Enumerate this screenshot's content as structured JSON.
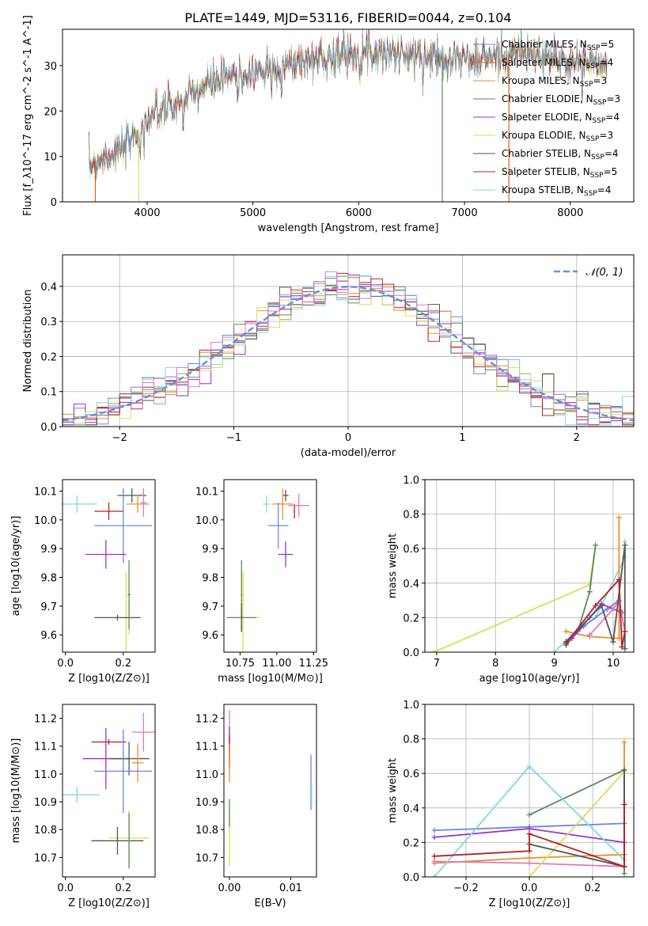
{
  "chart_data": [
    {
      "id": "spectrum",
      "type": "line",
      "title": "PLATE=1449, MJD=53116, FIBERID=0044, z=0.104",
      "xlabel": "wavelength [Angstrom, rest frame]",
      "ylabel": "Flux [f_λ10^-17 erg cm^-2 s^-1 A^-1]",
      "xlim": [
        3200,
        8600
      ],
      "ylim": [
        0,
        38
      ],
      "xticks": [
        4000,
        5000,
        6000,
        7000,
        8000
      ],
      "yticks": [
        0,
        10,
        20,
        30
      ],
      "observed_flux": {
        "x": [
          3450,
          3600,
          3800,
          3900,
          4000,
          4100,
          4300,
          4500,
          4700,
          4900,
          5100,
          5300,
          5500,
          5700,
          5900,
          6100,
          6300,
          6500,
          6700,
          6900,
          7100,
          7300,
          7500,
          7700,
          7900,
          8100,
          8300
        ],
        "y": [
          8,
          10,
          12,
          15,
          18,
          20,
          21,
          25,
          27,
          28,
          29,
          30,
          31,
          32,
          33,
          33,
          33,
          32,
          32,
          32,
          31,
          32,
          33,
          32,
          31,
          31,
          30
        ]
      },
      "model_dropouts": [
        3510,
        3920,
        6790,
        7420
      ],
      "legend": {
        "placement": "upper right",
        "entries": [
          {
            "label": "Chabrier MILES, N_SSP=5",
            "color": "#6688dd"
          },
          {
            "label": "Salpeter MILES, N_SSP=4",
            "color": "#e06010"
          },
          {
            "label": "Kroupa MILES, N_SSP=3",
            "color": "#e8902a"
          },
          {
            "label": "Chabrier ELODIE, N_SSP=3",
            "color": "#5a8a5a"
          },
          {
            "label": "Salpeter ELODIE, N_SSP=4",
            "color": "#9932cc"
          },
          {
            "label": "Kroupa ELODIE, N_SSP=3",
            "color": "#d4e157"
          },
          {
            "label": "Chabrier STELIB, N_SSP=4",
            "color": "#555555"
          },
          {
            "label": "Salpeter STELIB, N_SSP=5",
            "color": "#b22222"
          },
          {
            "label": "Kroupa STELIB, N_SSP=4",
            "color": "#80d8e0"
          }
        ]
      }
    },
    {
      "id": "residuals",
      "type": "line",
      "xlabel": "(data-model)/error",
      "ylabel": "Normed distribution",
      "xlim": [
        -2.5,
        2.5
      ],
      "ylim": [
        0,
        0.49
      ],
      "xticks": [
        -2,
        -1,
        0,
        1,
        2
      ],
      "yticks": [
        0,
        0.1,
        0.2,
        0.3,
        0.4
      ],
      "ytick_labels": [
        "0.0",
        "0.1",
        "0.2",
        "0.3",
        "0.4"
      ],
      "grid": true,
      "normal_curve": {
        "label": "𝒩(0, 1)",
        "mean": 0,
        "sigma": 1,
        "color": "#6a8fd8"
      },
      "histogram_bins": 50,
      "histogram_colors": [
        "#6688dd",
        "#e8902a",
        "#5a8a5a",
        "#9932cc",
        "#d4e157",
        "#555555",
        "#b22222",
        "#80d8e0",
        "#e377c2"
      ]
    },
    {
      "id": "age_vs_Z",
      "type": "scatter",
      "xlabel": "Z [log10(Z/Z⊙)]",
      "ylabel": "age  [log10(age/yr)]",
      "xlim": [
        -0.01,
        0.31
      ],
      "ylim": [
        9.54,
        10.14
      ],
      "xticks": [
        0.0,
        0.2
      ],
      "xtick_labels": [
        "0.0",
        "0.2"
      ],
      "yticks": [
        9.6,
        9.7,
        9.8,
        9.9,
        10.0,
        10.1
      ],
      "ytick_labels": [
        "9.6",
        "9.7",
        "9.8",
        "9.9",
        "10.0",
        "10.1"
      ],
      "points": [
        {
          "x": 0.04,
          "y": 10.055,
          "xerr": 0.07,
          "yerr": 0.03,
          "color": "#80d8e0"
        },
        {
          "x": 0.15,
          "y": 10.03,
          "xerr": 0.05,
          "yerr": 0.03,
          "color": "#b22222"
        },
        {
          "x": 0.23,
          "y": 10.085,
          "xerr": 0.05,
          "yerr": 0.025,
          "color": "#555555"
        },
        {
          "x": 0.25,
          "y": 10.055,
          "xerr": 0.04,
          "yerr": 0.03,
          "color": "#e8902a"
        },
        {
          "x": 0.27,
          "y": 10.06,
          "xerr": 0.01,
          "yerr": 0.05,
          "color": "#e377c2"
        },
        {
          "x": 0.2,
          "y": 9.98,
          "xerr": 0.1,
          "yerr": 0.13,
          "color": "#6688dd"
        },
        {
          "x": 0.14,
          "y": 9.88,
          "xerr": 0.07,
          "yerr": 0.05,
          "color": "#9932cc"
        },
        {
          "x": 0.22,
          "y": 9.66,
          "xerr": 0.04,
          "yerr": 0.06,
          "color": "#d4e157"
        },
        {
          "x": 0.21,
          "y": 9.66,
          "xerr": 0.02,
          "yerr": 0.16,
          "color": "#d4e157"
        },
        {
          "x": 0.18,
          "y": 9.66,
          "xerr": 0.08,
          "yerr": 0.01,
          "color": "#555555"
        },
        {
          "x": 0.22,
          "y": 9.74,
          "xerr": 0.005,
          "yerr": 0.12,
          "color": "#5a8a5a"
        }
      ]
    },
    {
      "id": "age_vs_mass",
      "type": "scatter",
      "xlabel": "mass [log10(M/M⊙)]",
      "ylabel": "",
      "xlim": [
        10.64,
        11.27
      ],
      "ylim": [
        9.54,
        10.14
      ],
      "xticks": [
        10.75,
        11.0,
        11.25
      ],
      "xtick_labels": [
        "10.75",
        "11.00",
        "11.25"
      ],
      "yticks": [
        9.6,
        9.7,
        9.8,
        9.9,
        10.0,
        10.1
      ],
      "ytick_labels": [
        "9.6",
        "9.7",
        "9.8",
        "9.9",
        "10.0",
        "10.1"
      ],
      "points": [
        {
          "x": 10.93,
          "y": 10.055,
          "xerr": 0.025,
          "yerr": 0.03,
          "color": "#80d8e0"
        },
        {
          "x": 11.12,
          "y": 10.03,
          "xerr": 0.005,
          "yerr": 0.025,
          "color": "#b22222"
        },
        {
          "x": 11.06,
          "y": 10.085,
          "xerr": 0.02,
          "yerr": 0.02,
          "color": "#555555"
        },
        {
          "x": 11.04,
          "y": 10.055,
          "xerr": 0.07,
          "yerr": 0.055,
          "color": "#e8902a"
        },
        {
          "x": 11.15,
          "y": 10.05,
          "xerr": 0.07,
          "yerr": 0.04,
          "color": "#e377c2"
        },
        {
          "x": 11.01,
          "y": 9.98,
          "xerr": 0.07,
          "yerr": 0.08,
          "color": "#6688dd"
        },
        {
          "x": 11.06,
          "y": 9.88,
          "xerr": 0.05,
          "yerr": 0.045,
          "color": "#9932cc"
        },
        {
          "x": 10.77,
          "y": 9.66,
          "xerr": 0.11,
          "yerr": 0.16,
          "color": "#d4e157"
        },
        {
          "x": 10.76,
          "y": 9.66,
          "xerr": 0.1,
          "yerr": 0.05,
          "color": "#5a8a5a"
        },
        {
          "x": 10.76,
          "y": 9.74,
          "xerr": 0.005,
          "yerr": 0.12,
          "color": "#5a8a5a"
        },
        {
          "x": 10.76,
          "y": 9.66,
          "xerr": 0.005,
          "yerr": 0.05,
          "color": "#555555"
        }
      ]
    },
    {
      "id": "mass_weight_vs_age",
      "type": "line",
      "xlabel": "age  [log10(age/yr)]",
      "ylabel": "mass weight",
      "xlim": [
        6.8,
        10.35
      ],
      "ylim": [
        0,
        1
      ],
      "xticks": [
        7,
        8,
        9,
        10
      ],
      "yticks": [
        0,
        0.2,
        0.4,
        0.6,
        0.8,
        1.0
      ],
      "ytick_labels": [
        "0.0",
        "0.2",
        "0.4",
        "0.6",
        "0.8",
        "1.0"
      ],
      "grid": true,
      "series": [
        {
          "color": "#d4e157",
          "x": [
            6.95,
            9.6,
            9.7
          ],
          "y": [
            0.0,
            0.39,
            0.62
          ]
        },
        {
          "color": "#80d8e0",
          "x": [
            9.0,
            9.3,
            9.7,
            10.2,
            10.2
          ],
          "y": [
            0.0,
            0.1,
            0.2,
            0.55,
            0.64
          ]
        },
        {
          "color": "#e8902a",
          "x": [
            9.2,
            9.6,
            10.1,
            10.1
          ],
          "y": [
            0.12,
            0.09,
            0.08,
            0.78
          ]
        },
        {
          "color": "#5a8a5a",
          "x": [
            9.2,
            9.4,
            9.6,
            9.7
          ],
          "y": [
            0.04,
            0.12,
            0.35,
            0.62
          ]
        },
        {
          "color": "#6688dd",
          "x": [
            9.2,
            9.5,
            9.9,
            10.1
          ],
          "y": [
            0.06,
            0.15,
            0.25,
            0.3
          ]
        },
        {
          "color": "#9932cc",
          "x": [
            9.3,
            9.6,
            9.8,
            10.15
          ],
          "y": [
            0.08,
            0.2,
            0.28,
            0.23
          ]
        },
        {
          "color": "#e377c2",
          "x": [
            9.6,
            10.0,
            10.1,
            10.2
          ],
          "y": [
            0.1,
            0.25,
            0.3,
            0.12
          ]
        },
        {
          "color": "#555555",
          "x": [
            9.2,
            9.8,
            10.0,
            10.2,
            10.2
          ],
          "y": [
            0.06,
            0.27,
            0.06,
            0.62,
            0.02
          ]
        },
        {
          "color": "#b22222",
          "x": [
            9.2,
            9.7,
            10.1,
            10.15,
            10.2
          ],
          "y": [
            0.05,
            0.27,
            0.42,
            0.03,
            0.12
          ]
        }
      ]
    },
    {
      "id": "mass_vs_Z",
      "type": "scatter",
      "xlabel": "Z [log10(Z/Z⊙)]",
      "ylabel": "mass [log10(M/M⊙)]",
      "xlim": [
        -0.01,
        0.31
      ],
      "ylim": [
        10.63,
        11.25
      ],
      "xticks": [
        0.0,
        0.2
      ],
      "xtick_labels": [
        "0.0",
        "0.2"
      ],
      "yticks": [
        10.7,
        10.8,
        10.9,
        11.0,
        11.1,
        11.2
      ],
      "ytick_labels": [
        "10.7",
        "10.8",
        "10.9",
        "11.0",
        "11.1",
        "11.2"
      ],
      "points": [
        {
          "x": 0.04,
          "y": 10.925,
          "xerr": 0.08,
          "yerr": 0.03,
          "color": "#80d8e0"
        },
        {
          "x": 0.15,
          "y": 11.115,
          "xerr": 0.06,
          "yerr": 0.01,
          "color": "#b22222"
        },
        {
          "x": 0.14,
          "y": 11.055,
          "xerr": 0.08,
          "yerr": 0.11,
          "color": "#9932cc"
        },
        {
          "x": 0.22,
          "y": 11.055,
          "xerr": 0.07,
          "yerr": 0.06,
          "color": "#555555"
        },
        {
          "x": 0.27,
          "y": 11.15,
          "xerr": 0.04,
          "yerr": 0.07,
          "color": "#e377c2"
        },
        {
          "x": 0.25,
          "y": 11.04,
          "xerr": 0.02,
          "yerr": 0.07,
          "color": "#e8902a"
        },
        {
          "x": 0.2,
          "y": 11.01,
          "xerr": 0.1,
          "yerr": 0.15,
          "color": "#6688dd"
        },
        {
          "x": 0.22,
          "y": 10.77,
          "xerr": 0.07,
          "yerr": 0.1,
          "color": "#d4e157"
        },
        {
          "x": 0.18,
          "y": 10.76,
          "xerr": 0.09,
          "yerr": 0.05,
          "color": "#555555"
        },
        {
          "x": 0.22,
          "y": 10.76,
          "xerr": 0.005,
          "yerr": 0.1,
          "color": "#5a8a5a"
        }
      ]
    },
    {
      "id": "mass_vs_ebv",
      "type": "scatter",
      "xlabel": "E(B-V)",
      "ylabel": "",
      "xlim": [
        -0.0009,
        0.0142
      ],
      "ylim": [
        10.63,
        11.25
      ],
      "xticks": [
        0.0,
        0.01
      ],
      "xtick_labels": [
        "0.00",
        "0.01"
      ],
      "yticks": [
        10.7,
        10.8,
        10.9,
        11.0,
        11.1,
        11.2
      ],
      "ytick_labels": [
        "10.7",
        "10.8",
        "10.9",
        "11.0",
        "11.1",
        "11.2"
      ],
      "points": [
        {
          "x": 0.0,
          "y": 11.15,
          "xerr": 0.0,
          "yerr": 0.08,
          "color": "#e377c2"
        },
        {
          "x": 0.0,
          "y": 11.1,
          "xerr": 0.0,
          "yerr": 0.07,
          "color": "#9932cc"
        },
        {
          "x": 0.0,
          "y": 11.08,
          "xerr": 0.0,
          "yerr": 0.06,
          "color": "#b22222"
        },
        {
          "x": 0.0,
          "y": 11.04,
          "xerr": 0.0,
          "yerr": 0.07,
          "color": "#e8902a"
        },
        {
          "x": 0.0,
          "y": 10.77,
          "xerr": 0.0,
          "yerr": 0.1,
          "color": "#d4e157"
        },
        {
          "x": 0.0,
          "y": 10.86,
          "xerr": 0.0,
          "yerr": 0.05,
          "color": "#5a8a5a"
        },
        {
          "x": 0.0133,
          "y": 10.97,
          "xerr": 0.0,
          "yerr": 0.1,
          "color": "#6688dd"
        },
        {
          "x": 0.0134,
          "y": 10.93,
          "xerr": 0.0,
          "yerr": 0.04,
          "color": "#80d8e0"
        }
      ]
    },
    {
      "id": "mass_weight_vs_Z",
      "type": "line",
      "xlabel": "Z [log10(Z/Z⊙)]",
      "ylabel": "mass weight",
      "xlim": [
        -0.33,
        0.33
      ],
      "ylim": [
        0,
        1
      ],
      "xticks": [
        -0.2,
        0.0,
        0.2
      ],
      "xtick_labels": [
        "−0.2",
        "0.0",
        "0.2"
      ],
      "yticks": [
        0,
        0.2,
        0.4,
        0.6,
        0.8,
        1.0
      ],
      "ytick_labels": [
        "0.0",
        "0.2",
        "0.4",
        "0.6",
        "0.8",
        "1.0"
      ],
      "grid": true,
      "series": [
        {
          "color": "#6688dd",
          "x": [
            -0.3,
            0.0,
            0.3
          ],
          "y": [
            0.27,
            0.29,
            0.31
          ]
        },
        {
          "color": "#9932cc",
          "x": [
            -0.3,
            0.0,
            0.3
          ],
          "y": [
            0.23,
            0.28,
            0.2
          ]
        },
        {
          "color": "#e8902a",
          "x": [
            -0.3,
            0.0,
            0.3,
            0.3
          ],
          "y": [
            0.08,
            0.11,
            0.13,
            0.78
          ]
        },
        {
          "color": "#e377c2",
          "x": [
            -0.3,
            0.0,
            0.3
          ],
          "y": [
            0.09,
            0.08,
            0.06
          ]
        },
        {
          "color": "#5a8a5a",
          "x": [
            0.0,
            0.3,
            0.3
          ],
          "y": [
            0.36,
            0.62,
            0.02
          ]
        },
        {
          "color": "#d4e157",
          "x": [
            0.0,
            0.3
          ],
          "y": [
            0.0,
            0.61
          ]
        },
        {
          "color": "#80d8e0",
          "x": [
            -0.3,
            0.0,
            0.3
          ],
          "y": [
            0.0,
            0.64,
            0.1
          ]
        },
        {
          "color": "#555555",
          "x": [
            0.0,
            0.3,
            0.3
          ],
          "y": [
            0.19,
            0.06,
            0.62
          ]
        },
        {
          "color": "#b22222",
          "x": [
            -0.3,
            0.0,
            0.0,
            0.3,
            0.3
          ],
          "y": [
            0.12,
            0.15,
            0.25,
            0.06,
            0.42
          ]
        }
      ]
    }
  ]
}
